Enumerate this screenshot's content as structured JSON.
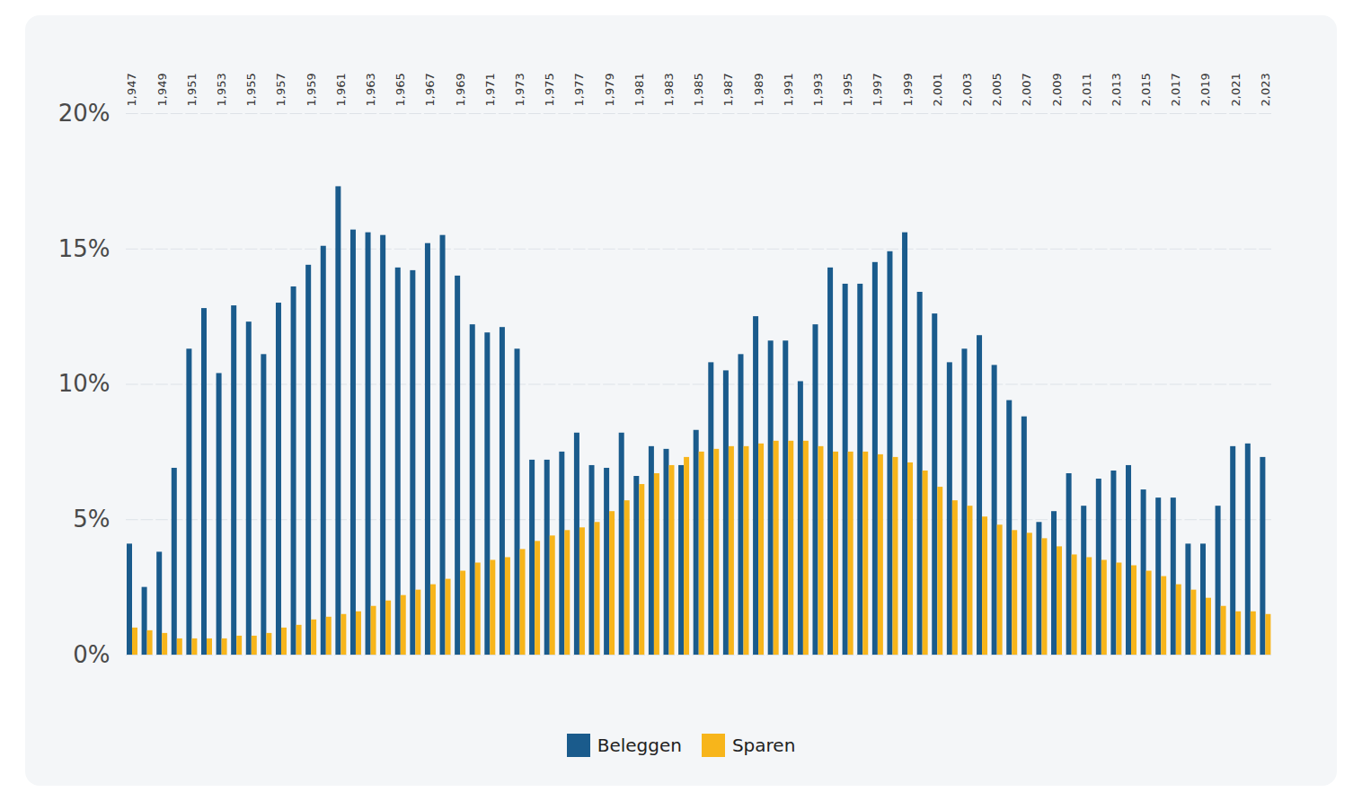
{
  "chart_data": {
    "type": "bar",
    "categories": [
      1947,
      null,
      1949,
      null,
      1951,
      null,
      1953,
      null,
      1955,
      null,
      1957,
      null,
      1959,
      null,
      1961,
      null,
      1963,
      null,
      1965,
      null,
      1967,
      null,
      1969,
      null,
      1971,
      null,
      1973,
      null,
      1975,
      null,
      1977,
      null,
      1979,
      null,
      1981,
      null,
      1983,
      null,
      1985,
      null,
      1987,
      null,
      1989,
      null,
      1991,
      null,
      1993,
      null,
      1995,
      null,
      1997,
      null,
      1999,
      null,
      2001,
      null,
      2003,
      null,
      2005,
      null,
      2007,
      null,
      2009,
      null,
      2011,
      null,
      2013,
      null,
      2015,
      null,
      2017,
      null,
      2019,
      null,
      2021,
      null,
      2023
    ],
    "series": [
      {
        "name": "Beleggen",
        "color": "#1a5b8c",
        "values": [
          4.1,
          2.5,
          3.8,
          6.9,
          11.3,
          12.8,
          10.4,
          12.9,
          12.3,
          11.1,
          13.0,
          13.6,
          14.4,
          15.1,
          17.3,
          15.7,
          15.6,
          15.5,
          14.3,
          14.2,
          15.2,
          15.5,
          14.0,
          12.2,
          11.9,
          12.1,
          11.3,
          7.2,
          7.2,
          7.5,
          8.2,
          7.0,
          6.9,
          8.2,
          6.6,
          7.7,
          7.6,
          7.0,
          8.3,
          10.8,
          10.5,
          11.1,
          12.5,
          11.6,
          11.6,
          10.1,
          12.2,
          14.3,
          13.7,
          13.7,
          14.5,
          14.9,
          15.6,
          13.4,
          12.6,
          10.8,
          11.3,
          11.8,
          10.7,
          9.4,
          8.8,
          4.9,
          5.3,
          6.7,
          5.5,
          6.5,
          6.8,
          7.0,
          6.1,
          5.8,
          5.8,
          4.1,
          4.1,
          5.5,
          7.7,
          7.8,
          7.3
        ]
      },
      {
        "name": "Sparen",
        "color": "#f7b51b",
        "values": [
          1.0,
          0.9,
          0.8,
          0.6,
          0.6,
          0.6,
          0.6,
          0.7,
          0.7,
          0.8,
          1.0,
          1.1,
          1.3,
          1.4,
          1.5,
          1.6,
          1.8,
          2.0,
          2.2,
          2.4,
          2.6,
          2.8,
          3.1,
          3.4,
          3.5,
          3.6,
          3.9,
          4.2,
          4.4,
          4.6,
          4.7,
          4.9,
          5.3,
          5.7,
          6.3,
          6.7,
          7.0,
          7.3,
          7.5,
          7.6,
          7.7,
          7.7,
          7.8,
          7.9,
          7.9,
          7.9,
          7.7,
          7.5,
          7.5,
          7.5,
          7.4,
          7.3,
          7.1,
          6.8,
          6.2,
          5.7,
          5.5,
          5.1,
          4.8,
          4.6,
          4.5,
          4.3,
          4.0,
          3.7,
          3.6,
          3.5,
          3.4,
          3.3,
          3.1,
          2.9,
          2.6,
          2.4,
          2.1,
          1.8,
          1.6,
          1.6,
          1.5
        ]
      }
    ],
    "ylim": [
      0,
      20
    ],
    "yticks": [
      {
        "value": 0,
        "label": "0%"
      },
      {
        "value": 5,
        "label": "5%"
      },
      {
        "value": 10,
        "label": "10%"
      },
      {
        "value": 15,
        "label": "15%"
      },
      {
        "value": 20,
        "label": "20%"
      }
    ],
    "grid": true,
    "legend": "bottom"
  }
}
